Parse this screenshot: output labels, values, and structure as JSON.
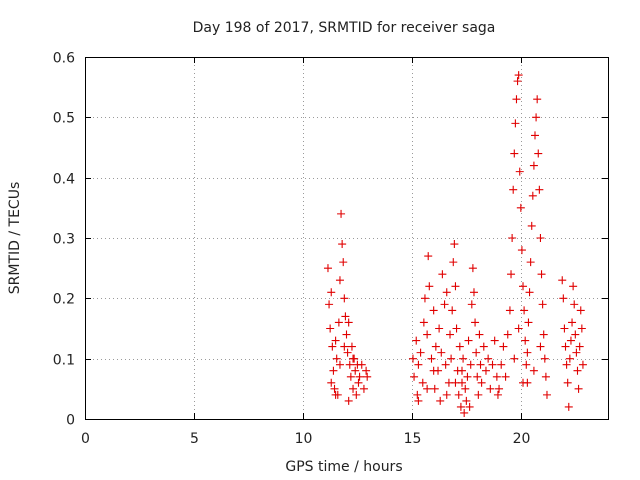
{
  "chart_data": {
    "type": "scatter",
    "title": "Day 198 of 2017, SRMTID for receiver saga",
    "xlabel": "GPS time / hours",
    "ylabel": "SRMTID / TECUs",
    "xlim": [
      0,
      24
    ],
    "ylim": [
      0,
      0.6
    ],
    "xticks": [
      0,
      5,
      10,
      15,
      20
    ],
    "xtick_labels": [
      "0",
      "5",
      "10",
      "15",
      "20"
    ],
    "yticks": [
      0,
      0.1,
      0.2,
      0.3,
      0.4,
      0.5,
      0.6
    ],
    "ytick_labels": [
      "0",
      "0.1",
      "0.2",
      "0.3",
      "0.4",
      "0.5",
      "0.6"
    ],
    "grid": true,
    "marker": "+",
    "color": "#e00000",
    "series": [
      {
        "name": "SRMTID",
        "points": [
          [
            11.15,
            0.25
          ],
          [
            11.2,
            0.19
          ],
          [
            11.25,
            0.15
          ],
          [
            11.3,
            0.21
          ],
          [
            11.35,
            0.12
          ],
          [
            11.4,
            0.08
          ],
          [
            11.45,
            0.05
          ],
          [
            11.5,
            0.13
          ],
          [
            11.55,
            0.1
          ],
          [
            11.6,
            0.04
          ],
          [
            11.65,
            0.16
          ],
          [
            11.7,
            0.23
          ],
          [
            11.75,
            0.34
          ],
          [
            11.8,
            0.29
          ],
          [
            11.85,
            0.26
          ],
          [
            11.9,
            0.2
          ],
          [
            11.95,
            0.17
          ],
          [
            12.0,
            0.14
          ],
          [
            12.05,
            0.11
          ],
          [
            12.1,
            0.16
          ],
          [
            12.15,
            0.09
          ],
          [
            12.2,
            0.07
          ],
          [
            12.25,
            0.12
          ],
          [
            12.3,
            0.05
          ],
          [
            12.35,
            0.1
          ],
          [
            12.4,
            0.08
          ],
          [
            12.45,
            0.04
          ],
          [
            12.5,
            0.09
          ],
          [
            12.55,
            0.06
          ],
          [
            12.6,
            0.07
          ],
          [
            12.7,
            0.09
          ],
          [
            12.8,
            0.05
          ],
          [
            12.9,
            0.08
          ],
          [
            12.95,
            0.07
          ],
          [
            11.3,
            0.06
          ],
          [
            11.5,
            0.04
          ],
          [
            11.7,
            0.09
          ],
          [
            11.9,
            0.12
          ],
          [
            12.1,
            0.03
          ],
          [
            12.3,
            0.1
          ],
          [
            15.05,
            0.1
          ],
          [
            15.1,
            0.07
          ],
          [
            15.2,
            0.13
          ],
          [
            15.25,
            0.04
          ],
          [
            15.3,
            0.09
          ],
          [
            15.4,
            0.11
          ],
          [
            15.5,
            0.06
          ],
          [
            15.55,
            0.16
          ],
          [
            15.6,
            0.2
          ],
          [
            15.7,
            0.14
          ],
          [
            15.75,
            0.27
          ],
          [
            15.8,
            0.22
          ],
          [
            15.9,
            0.1
          ],
          [
            16.0,
            0.18
          ],
          [
            16.05,
            0.05
          ],
          [
            16.1,
            0.12
          ],
          [
            16.2,
            0.08
          ],
          [
            16.25,
            0.15
          ],
          [
            16.3,
            0.03
          ],
          [
            16.35,
            0.11
          ],
          [
            16.4,
            0.24
          ],
          [
            16.5,
            0.19
          ],
          [
            16.55,
            0.09
          ],
          [
            16.6,
            0.21
          ],
          [
            16.7,
            0.06
          ],
          [
            16.75,
            0.14
          ],
          [
            16.8,
            0.1
          ],
          [
            16.85,
            0.18
          ],
          [
            16.9,
            0.26
          ],
          [
            16.95,
            0.29
          ],
          [
            17.0,
            0.22
          ],
          [
            17.05,
            0.15
          ],
          [
            17.1,
            0.08
          ],
          [
            17.15,
            0.04
          ],
          [
            17.2,
            0.12
          ],
          [
            17.25,
            0.02
          ],
          [
            17.3,
            0.06
          ],
          [
            17.35,
            0.1
          ],
          [
            17.4,
            0.01
          ],
          [
            17.45,
            0.05
          ],
          [
            17.5,
            0.03
          ],
          [
            17.55,
            0.07
          ],
          [
            17.6,
            0.13
          ],
          [
            17.65,
            0.02
          ],
          [
            17.7,
            0.09
          ],
          [
            17.75,
            0.19
          ],
          [
            17.8,
            0.25
          ],
          [
            17.85,
            0.21
          ],
          [
            17.9,
            0.16
          ],
          [
            17.95,
            0.11
          ],
          [
            18.0,
            0.07
          ],
          [
            18.05,
            0.04
          ],
          [
            18.1,
            0.14
          ],
          [
            18.15,
            0.09
          ],
          [
            18.2,
            0.06
          ],
          [
            18.3,
            0.12
          ],
          [
            18.4,
            0.08
          ],
          [
            18.5,
            0.1
          ],
          [
            18.6,
            0.05
          ],
          [
            18.7,
            0.09
          ],
          [
            18.8,
            0.13
          ],
          [
            18.9,
            0.07
          ],
          [
            18.95,
            0.04
          ],
          [
            15.3,
            0.03
          ],
          [
            15.7,
            0.05
          ],
          [
            16.0,
            0.08
          ],
          [
            16.6,
            0.04
          ],
          [
            17.0,
            0.06
          ],
          [
            17.3,
            0.08
          ],
          [
            19.0,
            0.05
          ],
          [
            19.1,
            0.09
          ],
          [
            19.2,
            0.12
          ],
          [
            19.3,
            0.07
          ],
          [
            19.4,
            0.14
          ],
          [
            19.5,
            0.18
          ],
          [
            19.55,
            0.24
          ],
          [
            19.6,
            0.3
          ],
          [
            19.65,
            0.38
          ],
          [
            19.7,
            0.44
          ],
          [
            19.75,
            0.49
          ],
          [
            19.8,
            0.53
          ],
          [
            19.85,
            0.56
          ],
          [
            19.9,
            0.57
          ],
          [
            19.95,
            0.41
          ],
          [
            20.0,
            0.35
          ],
          [
            20.05,
            0.28
          ],
          [
            20.1,
            0.22
          ],
          [
            20.15,
            0.18
          ],
          [
            20.2,
            0.13
          ],
          [
            20.25,
            0.09
          ],
          [
            20.3,
            0.06
          ],
          [
            20.35,
            0.16
          ],
          [
            20.4,
            0.21
          ],
          [
            20.45,
            0.26
          ],
          [
            20.5,
            0.32
          ],
          [
            20.55,
            0.37
          ],
          [
            20.6,
            0.42
          ],
          [
            20.65,
            0.47
          ],
          [
            20.7,
            0.5
          ],
          [
            20.75,
            0.53
          ],
          [
            20.8,
            0.44
          ],
          [
            20.85,
            0.38
          ],
          [
            20.9,
            0.3
          ],
          [
            20.95,
            0.24
          ],
          [
            21.0,
            0.19
          ],
          [
            21.05,
            0.14
          ],
          [
            21.1,
            0.1
          ],
          [
            21.15,
            0.07
          ],
          [
            21.2,
            0.04
          ],
          [
            19.7,
            0.1
          ],
          [
            19.9,
            0.15
          ],
          [
            20.1,
            0.06
          ],
          [
            20.3,
            0.11
          ],
          [
            20.6,
            0.08
          ],
          [
            20.9,
            0.12
          ],
          [
            21.9,
            0.23
          ],
          [
            21.95,
            0.2
          ],
          [
            22.0,
            0.15
          ],
          [
            22.05,
            0.12
          ],
          [
            22.1,
            0.09
          ],
          [
            22.15,
            0.06
          ],
          [
            22.2,
            0.02
          ],
          [
            22.25,
            0.1
          ],
          [
            22.3,
            0.13
          ],
          [
            22.35,
            0.16
          ],
          [
            22.4,
            0.22
          ],
          [
            22.45,
            0.19
          ],
          [
            22.5,
            0.14
          ],
          [
            22.55,
            0.11
          ],
          [
            22.6,
            0.08
          ],
          [
            22.65,
            0.05
          ],
          [
            22.7,
            0.12
          ],
          [
            22.75,
            0.18
          ],
          [
            22.8,
            0.15
          ],
          [
            22.85,
            0.09
          ]
        ]
      }
    ]
  }
}
